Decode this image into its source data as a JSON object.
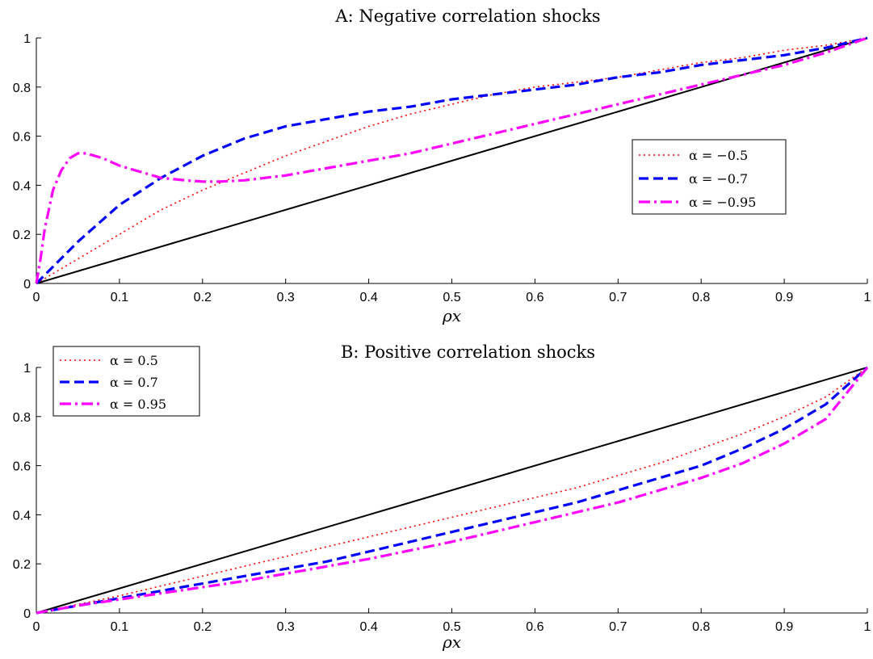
{
  "chart_data": [
    {
      "type": "line",
      "title": "A: Negative correlation shocks",
      "xlabel": "ρx",
      "ylabel": "",
      "xlim": [
        0,
        1
      ],
      "ylim": [
        0,
        1
      ],
      "x_ticks": [
        "0",
        "0.1",
        "0.2",
        "0.3",
        "0.4",
        "0.5",
        "0.6",
        "0.7",
        "0.8",
        "0.9",
        "1"
      ],
      "y_ticks": [
        "0",
        "0.2",
        "0.4",
        "0.6",
        "0.8",
        "1"
      ],
      "grid": false,
      "legend_position": "right",
      "series": [
        {
          "name": "",
          "label": "",
          "color": "#000000",
          "style": "solid",
          "x": [
            0,
            1
          ],
          "y": [
            0,
            1
          ]
        },
        {
          "name": "α = −0.5",
          "label": "α = −0.5",
          "color": "#ff0000",
          "style": "dotted",
          "x": [
            0,
            0.05,
            0.1,
            0.15,
            0.2,
            0.25,
            0.3,
            0.35,
            0.4,
            0.45,
            0.5,
            0.55,
            0.6,
            0.65,
            0.7,
            0.75,
            0.8,
            0.85,
            0.9,
            0.95,
            1
          ],
          "y": [
            0,
            0.1,
            0.2,
            0.3,
            0.38,
            0.45,
            0.52,
            0.58,
            0.64,
            0.69,
            0.73,
            0.77,
            0.8,
            0.82,
            0.84,
            0.87,
            0.9,
            0.92,
            0.95,
            0.97,
            1
          ]
        },
        {
          "name": "α = −0.7",
          "label": "α = −0.7",
          "color": "#0000ff",
          "style": "dashed",
          "x": [
            0,
            0.05,
            0.1,
            0.15,
            0.2,
            0.25,
            0.3,
            0.35,
            0.4,
            0.45,
            0.5,
            0.55,
            0.6,
            0.65,
            0.7,
            0.75,
            0.8,
            0.85,
            0.9,
            0.95,
            1
          ],
          "y": [
            0,
            0.17,
            0.32,
            0.43,
            0.52,
            0.59,
            0.64,
            0.67,
            0.7,
            0.72,
            0.75,
            0.77,
            0.79,
            0.81,
            0.84,
            0.86,
            0.89,
            0.91,
            0.93,
            0.96,
            1
          ]
        },
        {
          "name": "α = −0.95",
          "label": "α = −0.95",
          "color": "#ff00ff",
          "style": "dashdot",
          "x": [
            0,
            0.005,
            0.01,
            0.02,
            0.03,
            0.04,
            0.05,
            0.06,
            0.08,
            0.1,
            0.12,
            0.15,
            0.18,
            0.2,
            0.22,
            0.25,
            0.3,
            0.35,
            0.4,
            0.45,
            0.5,
            0.55,
            0.6,
            0.65,
            0.7,
            0.75,
            0.8,
            0.85,
            0.9,
            0.95,
            1
          ],
          "y": [
            0,
            0.1,
            0.22,
            0.38,
            0.46,
            0.51,
            0.53,
            0.53,
            0.51,
            0.48,
            0.46,
            0.43,
            0.42,
            0.415,
            0.415,
            0.42,
            0.44,
            0.47,
            0.5,
            0.53,
            0.57,
            0.61,
            0.65,
            0.69,
            0.73,
            0.77,
            0.81,
            0.85,
            0.89,
            0.94,
            1
          ]
        }
      ]
    },
    {
      "type": "line",
      "title": "B: Positive correlation shocks",
      "xlabel": "ρx",
      "ylabel": "",
      "xlim": [
        0,
        1
      ],
      "ylim": [
        0,
        1
      ],
      "x_ticks": [
        "0",
        "0.1",
        "0.2",
        "0.3",
        "0.4",
        "0.5",
        "0.6",
        "0.7",
        "0.8",
        "0.9",
        "1"
      ],
      "y_ticks": [
        "0",
        "0.2",
        "0.4",
        "0.6",
        "0.8",
        "1"
      ],
      "grid": false,
      "legend_position": "top-left",
      "series": [
        {
          "name": "",
          "label": "",
          "color": "#000000",
          "style": "solid",
          "x": [
            0,
            1
          ],
          "y": [
            0,
            1
          ]
        },
        {
          "name": "α = 0.5",
          "label": "α = 0.5",
          "color": "#ff0000",
          "style": "dotted",
          "x": [
            0,
            0.05,
            0.1,
            0.15,
            0.2,
            0.25,
            0.3,
            0.35,
            0.4,
            0.45,
            0.5,
            0.55,
            0.6,
            0.65,
            0.7,
            0.75,
            0.8,
            0.85,
            0.9,
            0.95,
            1
          ],
          "y": [
            0,
            0.035,
            0.07,
            0.11,
            0.15,
            0.19,
            0.23,
            0.27,
            0.31,
            0.35,
            0.39,
            0.43,
            0.47,
            0.51,
            0.56,
            0.61,
            0.67,
            0.73,
            0.8,
            0.88,
            1
          ]
        },
        {
          "name": "α = 0.7",
          "label": "α = 0.7",
          "color": "#0000ff",
          "style": "dashed",
          "x": [
            0,
            0.05,
            0.1,
            0.15,
            0.2,
            0.25,
            0.3,
            0.35,
            0.4,
            0.45,
            0.5,
            0.55,
            0.6,
            0.65,
            0.7,
            0.75,
            0.8,
            0.85,
            0.9,
            0.95,
            1
          ],
          "y": [
            0,
            0.03,
            0.06,
            0.09,
            0.12,
            0.15,
            0.18,
            0.21,
            0.25,
            0.29,
            0.33,
            0.37,
            0.41,
            0.45,
            0.5,
            0.55,
            0.6,
            0.67,
            0.75,
            0.85,
            1
          ]
        },
        {
          "name": "α = 0.95",
          "label": "α = 0.95",
          "color": "#ff00ff",
          "style": "dashdot",
          "x": [
            0,
            0.05,
            0.1,
            0.15,
            0.2,
            0.25,
            0.3,
            0.35,
            0.4,
            0.45,
            0.5,
            0.55,
            0.6,
            0.65,
            0.7,
            0.75,
            0.8,
            0.85,
            0.9,
            0.95,
            1
          ],
          "y": [
            0,
            0.03,
            0.055,
            0.08,
            0.105,
            0.13,
            0.16,
            0.19,
            0.22,
            0.255,
            0.29,
            0.33,
            0.37,
            0.41,
            0.45,
            0.5,
            0.55,
            0.61,
            0.69,
            0.79,
            1
          ]
        }
      ]
    }
  ]
}
